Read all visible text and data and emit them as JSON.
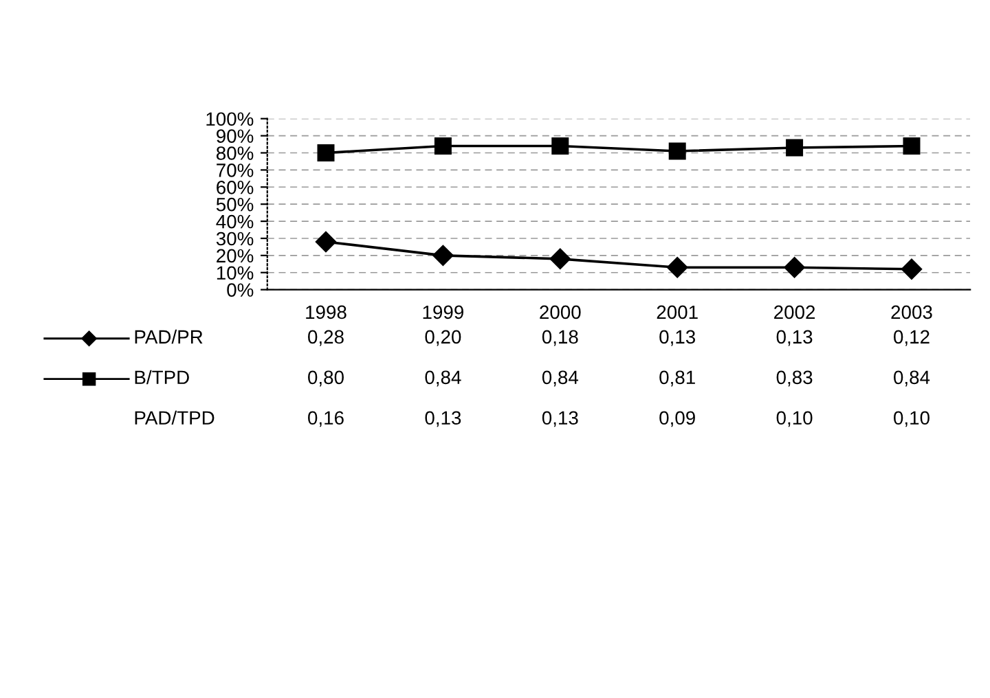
{
  "chart_data": {
    "type": "line",
    "categories": [
      "1998",
      "1999",
      "2000",
      "2001",
      "2002",
      "2003"
    ],
    "series": [
      {
        "name": "PAD/PR",
        "color": "#000000",
        "marker": "diamond",
        "values": [
          0.28,
          0.2,
          0.18,
          0.13,
          0.13,
          0.12
        ],
        "value_labels": [
          "0,28",
          "0,20",
          "0,18",
          "0,13",
          "0,13",
          "0,12"
        ]
      },
      {
        "name": "B/TPD",
        "color": "#000000",
        "marker": "square",
        "values": [
          0.8,
          0.84,
          0.84,
          0.81,
          0.83,
          0.84
        ],
        "value_labels": [
          "0,80",
          "0,84",
          "0,84",
          "0,81",
          "0,83",
          "0,84"
        ]
      },
      {
        "name": "PAD/TPD",
        "type": "other",
        "values": [
          null,
          null,
          null,
          null,
          null,
          null
        ],
        "value_labels": [
          "0,16",
          "0,13",
          "0,13",
          "0,09",
          "0,10",
          "0,10"
        ]
      }
    ],
    "ylim": [
      0,
      1
    ],
    "yticks": [
      {
        "value": 0,
        "label": "0%"
      },
      {
        "value": 0.1,
        "label": "10%"
      },
      {
        "value": 0.2,
        "label": "20%"
      },
      {
        "value": 0.3,
        "label": "30%"
      },
      {
        "value": 0.4,
        "label": "40%"
      },
      {
        "value": 0.5,
        "label": "50%"
      },
      {
        "value": 0.6,
        "label": "60%"
      },
      {
        "value": 0.7,
        "label": "70%"
      },
      {
        "value": 0.8,
        "label": "80%"
      },
      {
        "value": 0.9,
        "label": "90%"
      },
      {
        "value": 1,
        "label": "100%"
      }
    ],
    "grid": "y",
    "legend": "bottom left",
    "line_style": "solid"
  }
}
